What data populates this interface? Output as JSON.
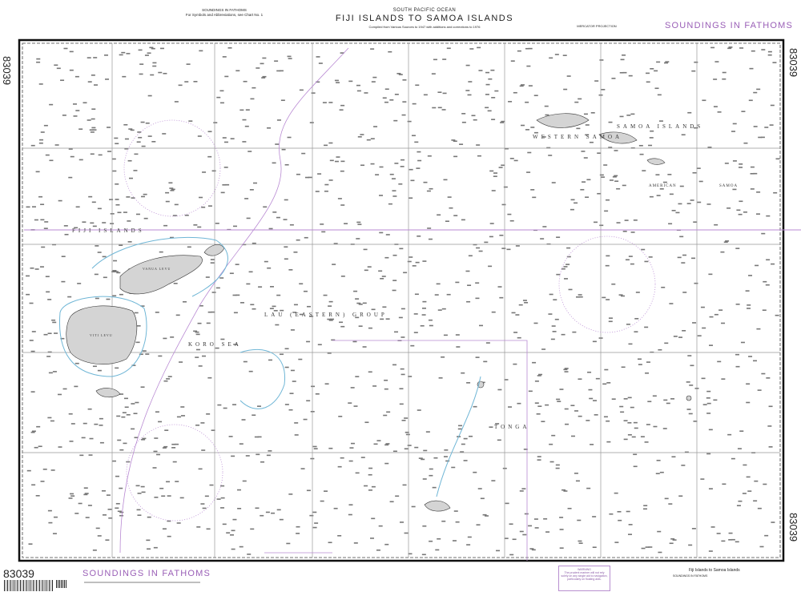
{
  "chart_number": "83039",
  "header": {
    "subtitle": "SOUTH PACIFIC OCEAN",
    "title": "FIJI ISLANDS TO SAMOA ISLANDS",
    "compiled": "Compiled from Various Sources to 1947 with additions and corrections to 1976",
    "soundings_note": "SOUNDINGS IN FATHOMS",
    "abbrev_note": "For Symbols and Abbreviations, see Chart No. 1",
    "projection": "MERCATOR PROJECTION"
  },
  "soundings_banner": "SOUNDINGS IN FATHOMS",
  "map": {
    "labels": {
      "fiji": "FIJI ISLANDS",
      "koro": "KORO SEA",
      "lau": "LAU (EASTERN) GROUP",
      "tonga": "TONGA",
      "western_samoa": "WESTERN SAMOA",
      "samoa_islands": "SAMOA ISLANDS",
      "american": "AMERICAN",
      "samoa": "SAMOA",
      "vanua_levu": "VANUA LEVU",
      "viti_levu": "VITI LEVU"
    },
    "colors": {
      "land": "#d4d4d4",
      "reef": "#6fb6d6",
      "magenta": "#b98ad3",
      "grid": "#888888"
    }
  },
  "footer": {
    "warning_title": "WARNING",
    "warning_text": "The prudent mariner will not rely solely on any single aid to navigation, particularly on floating aids.",
    "chart_title": "Fiji Islands to Samoa Islands",
    "scale_text": "SOUNDINGS IN FATHOMS"
  }
}
